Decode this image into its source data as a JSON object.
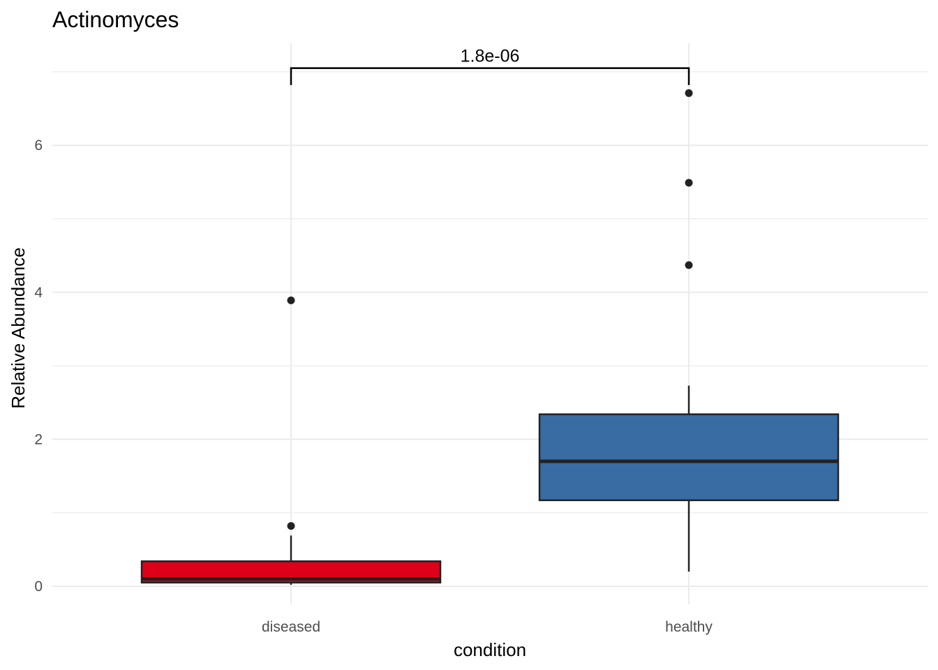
{
  "chart_data": {
    "type": "box",
    "title": "Actinomyces",
    "xlabel": "condition",
    "ylabel": "Relative Abundance",
    "categories": [
      "diseased",
      "healthy"
    ],
    "ylim": [
      -0.5,
      7.35
    ],
    "yticks": [
      0,
      2,
      4,
      6
    ],
    "ytick_labels": [
      "0",
      "2",
      "4",
      "6"
    ],
    "grid": true,
    "legend": "none",
    "boxes": [
      {
        "category": "diseased",
        "color": "#de0018",
        "whisker_low": 0.02,
        "q1": 0.05,
        "median": 0.1,
        "q3": 0.34,
        "whisker_high": 0.69,
        "outliers": [
          0.82,
          3.89
        ]
      },
      {
        "category": "healthy",
        "color": "#386ca3",
        "whisker_low": 0.2,
        "q1": 1.17,
        "median": 1.7,
        "q3": 2.34,
        "whisker_high": 2.73,
        "outliers": [
          4.37,
          5.49,
          6.71
        ]
      }
    ],
    "significance": {
      "label": "1.8e-06",
      "from": "diseased",
      "to": "healthy",
      "y": 7.05,
      "tip_y": 6.82
    }
  }
}
